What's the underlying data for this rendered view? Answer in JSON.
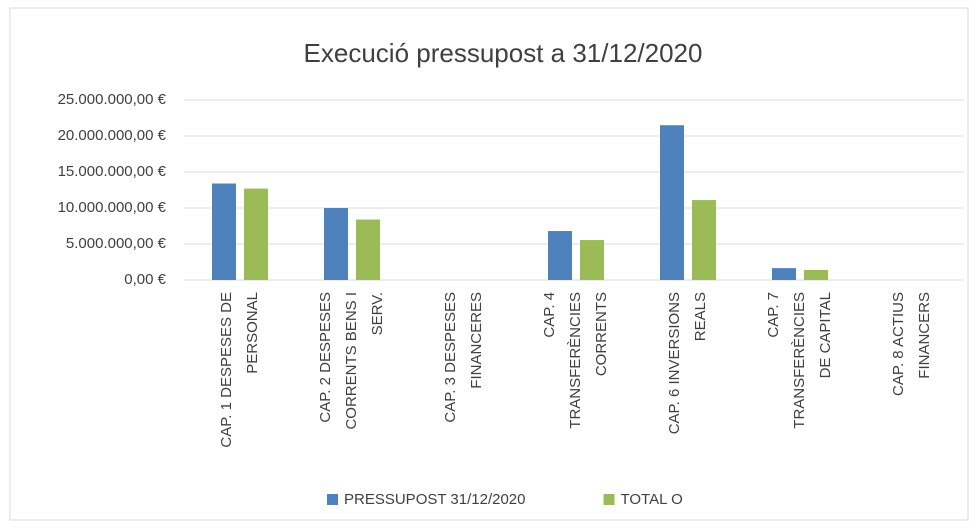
{
  "chart_data": {
    "type": "bar",
    "title": "Execució pressupost a 31/12/2020",
    "categories": [
      [
        "CAP. 1 DESPESES DE",
        "PERSONAL"
      ],
      [
        "CAP. 2 DESPESES",
        "CORRENTS BENS I",
        "SERV."
      ],
      [
        "CAP. 3 DESPESES",
        "FINANCERES"
      ],
      [
        "CAP. 4",
        "TRANSFERÈNCIES",
        "CORRENTS"
      ],
      [
        "CAP. 6 INVERSIONS",
        "REALS"
      ],
      [
        "CAP. 7",
        "TRANSFERÈNCIES",
        "DE CAPITAL"
      ],
      [
        "CAP. 8 ACTIUS",
        "FINANCERS"
      ]
    ],
    "series": [
      {
        "name": "PRESSUPOST 31/12/2020",
        "color": "#4f81bd",
        "values": [
          13400000,
          10000000,
          0,
          6800000,
          21500000,
          1650000,
          0
        ]
      },
      {
        "name": "TOTAL O",
        "color": "#9bbb59",
        "values": [
          12700000,
          8400000,
          0,
          5550000,
          11100000,
          1400000,
          0
        ]
      }
    ],
    "ylim": [
      0,
      25000000
    ],
    "yticks": [
      {
        "value": 0,
        "label": "0,00 €"
      },
      {
        "value": 5000000,
        "label": "5.000.000,00 €"
      },
      {
        "value": 10000000,
        "label": "10.000.000,00 €"
      },
      {
        "value": 15000000,
        "label": "15.000.000,00 €"
      },
      {
        "value": 20000000,
        "label": "20.000.000,00 €"
      },
      {
        "value": 25000000,
        "label": "25.000.000,00 €"
      }
    ],
    "grid": true,
    "legend": "bottom"
  }
}
